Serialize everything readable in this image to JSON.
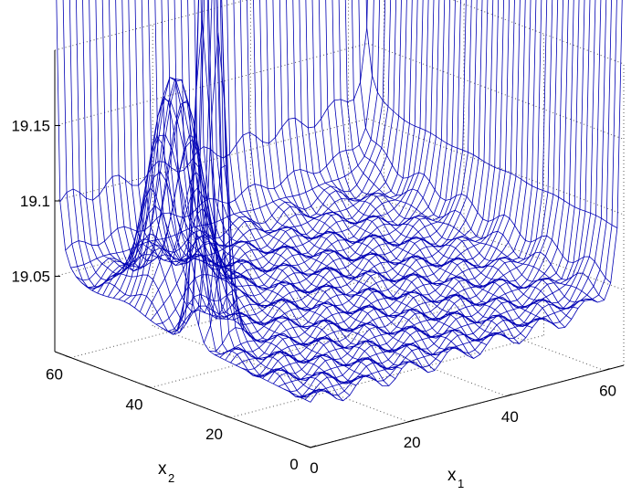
{
  "chart_data": {
    "type": "surface",
    "style": "3d mesh (wireframe)",
    "mesh_color": "#0000b4",
    "grid": true,
    "xlabel": "x",
    "xlabel_sub": "1",
    "ylabel": "x",
    "ylabel_sub": "2",
    "x_ticks": [
      "0",
      "20",
      "40",
      "60"
    ],
    "y_ticks": [
      "0",
      "20",
      "40",
      "60"
    ],
    "z_ticks": [
      "19.05",
      "19.1",
      "19.15"
    ],
    "x_range": [
      0,
      64
    ],
    "y_range": [
      0,
      64
    ],
    "z_range": [
      19.0,
      19.2
    ],
    "description": "Mesh surface with a flat floor near 19.0–19.1, rising steeply at the x1 and x2 boundaries and a narrow spike near x1≈0, x2 in the interior."
  }
}
